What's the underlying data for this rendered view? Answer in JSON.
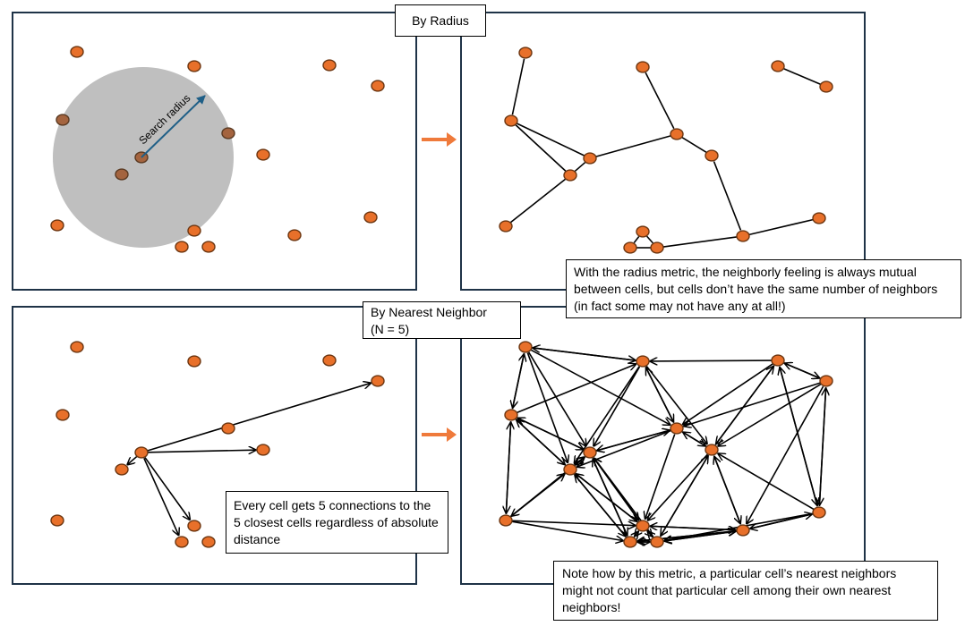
{
  "titles": {
    "radius": "By Radius",
    "nn_line1": "By Nearest Neighbor",
    "nn_line2": "(N = 5)"
  },
  "labels": {
    "search_radius": "Search radius"
  },
  "notes": {
    "radius": "With the radius metric, the neighborly feeling is always mutual between cells, but cells don’t have the same number of neighbors (in fact some may not have any at all!)",
    "nn_every": "Every cell gets 5 connections to the 5 closest cells regardless of absolute distance",
    "nn_note": "Note how by this metric, a particular cell’s nearest neighbors might not count that particular cell among their own nearest neighbors!"
  },
  "colors": {
    "node": "#e8702a",
    "search_circle": "#bfbfbf",
    "radius_arrow": "#1f5f87",
    "transition_arrow": "#ef7a3b"
  },
  "nn_example_center": 6,
  "nn_example_targets": [
    3,
    7,
    8,
    11,
    13
  ]
}
